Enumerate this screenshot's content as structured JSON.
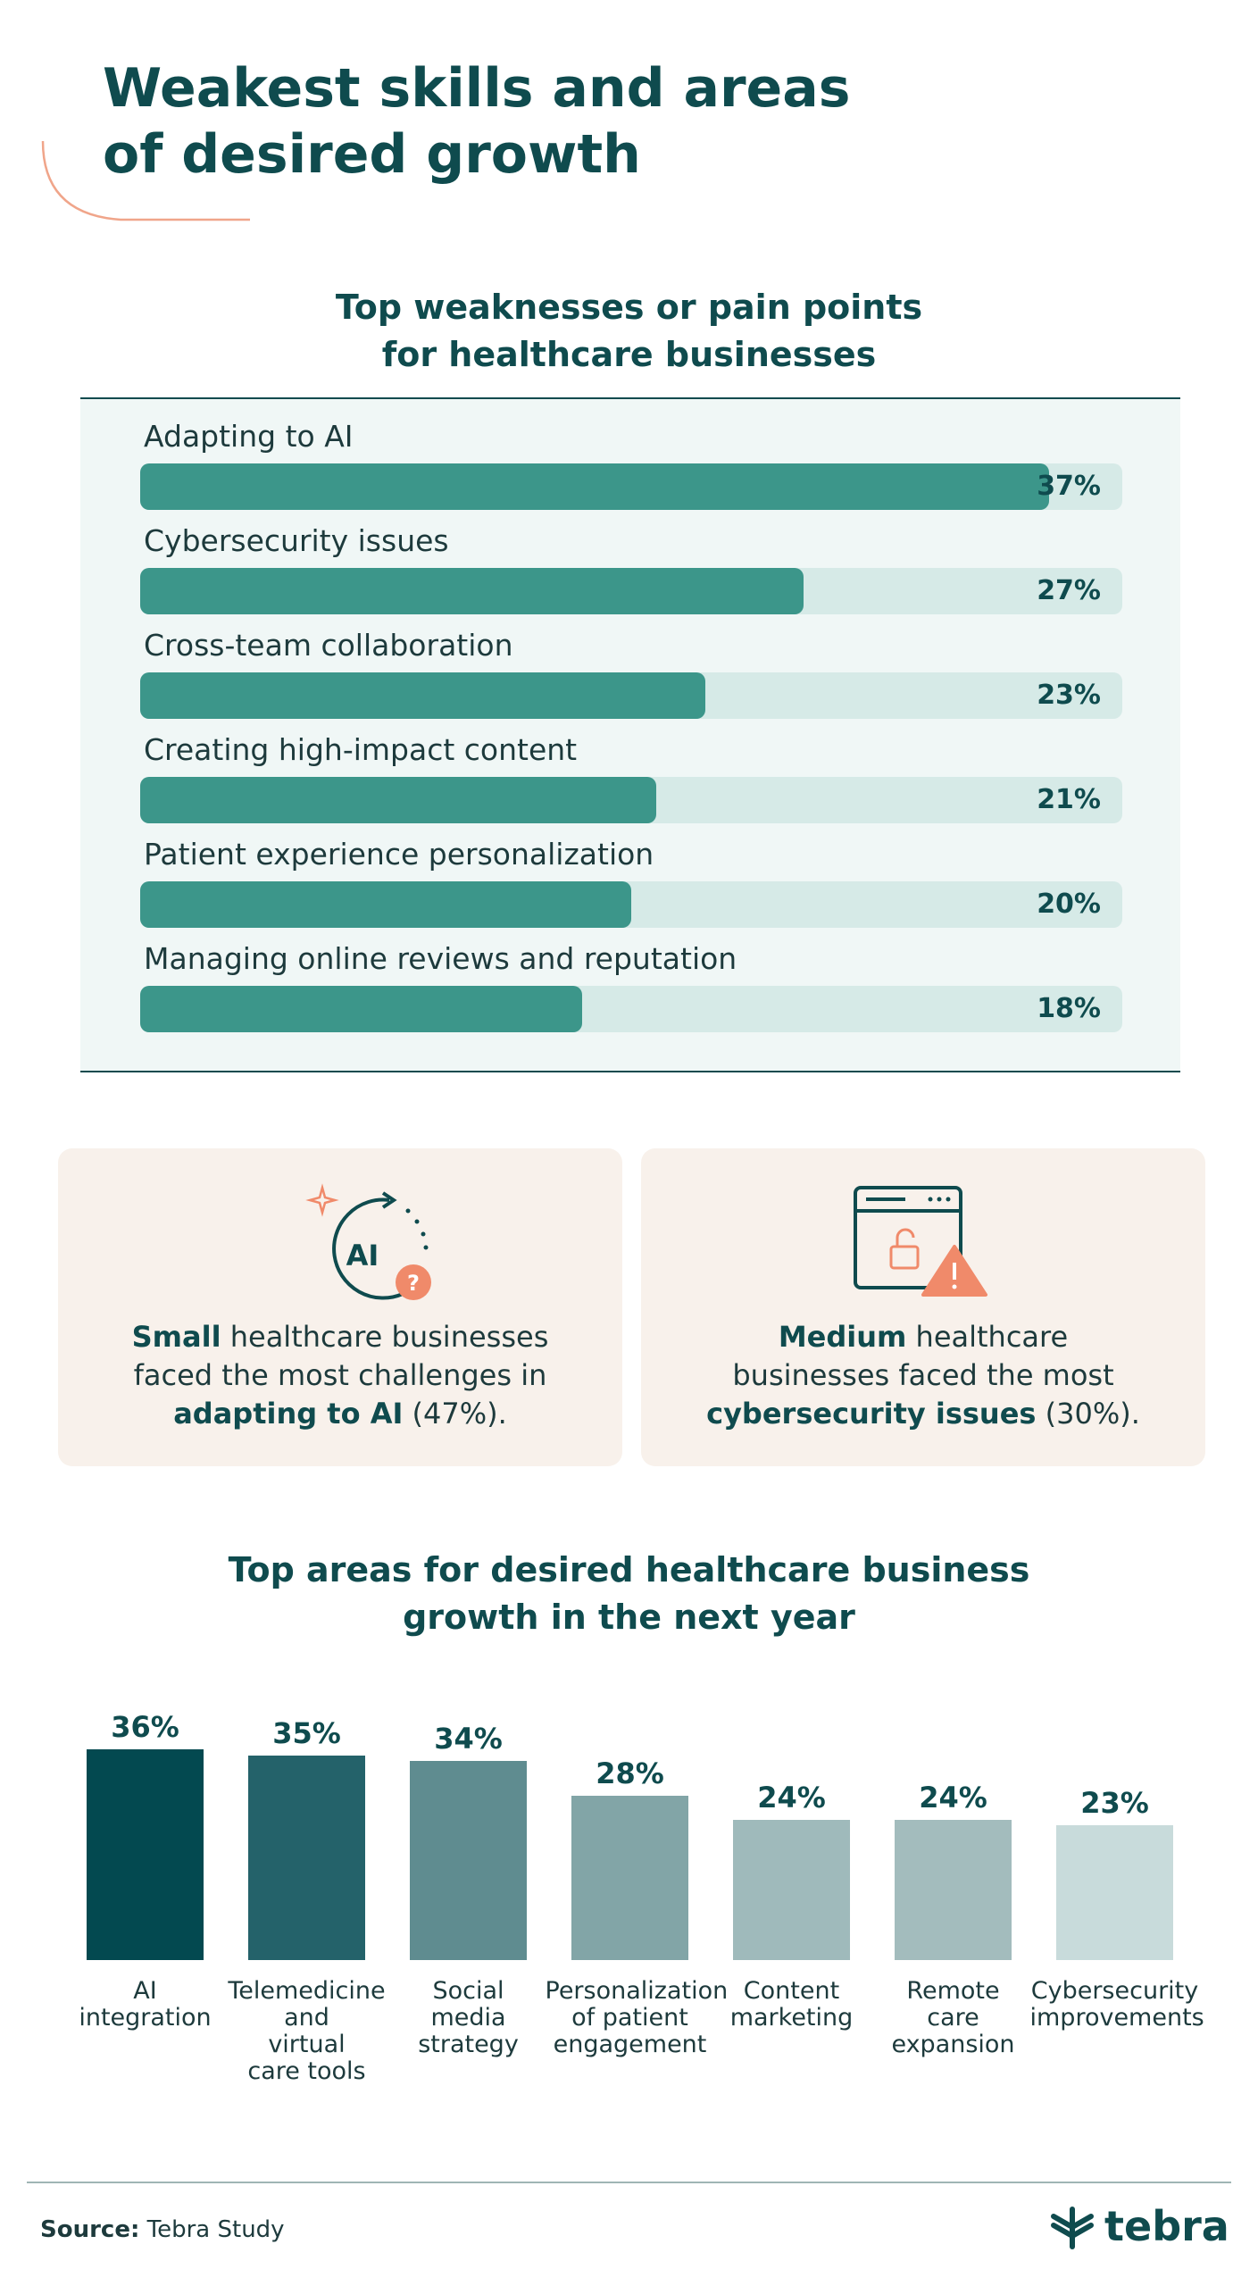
{
  "header": {
    "title_line1": "Weakest skills and areas",
    "title_line2": "of desired growth"
  },
  "weaknesses": {
    "title_line1": "Top weaknesses or pain points",
    "title_line2": "for healthcare businesses"
  },
  "cards": [
    {
      "icon": "ai-question-icon",
      "bold1": "Small",
      "text1": " healthcare businesses",
      "text2": "faced the most challenges in",
      "bold2": "adapting to AI",
      "text3": " (47%).",
      "icon_text": "AI"
    },
    {
      "icon": "browser-unlock-warning-icon",
      "bold1": "Medium",
      "text1": " healthcare",
      "text2": "businesses faced the most",
      "bold2": "cybersecurity issues",
      "text3": " (30%)."
    }
  ],
  "growth": {
    "title_line1": "Top areas for desired healthcare business",
    "title_line2": "growth in the next year"
  },
  "footer": {
    "source_label": "Source:",
    "source_value": " Tebra Study",
    "brand": "tebra"
  },
  "colors": {
    "dark_teal": "#0f4b4e",
    "bar_teal": "#3c968a",
    "track": "#d6eae7",
    "accent_orange": "#f08a6a",
    "card_bg": "#f8f1eb"
  },
  "chart_data": [
    {
      "type": "bar",
      "orientation": "horizontal",
      "title": "Top weaknesses or pain points for healthcare businesses",
      "categories": [
        "Adapting to AI",
        "Cybersecurity issues",
        "Cross-team collaboration",
        "Creating high-impact content",
        "Patient experience personalization",
        "Managing online reviews and reputation"
      ],
      "values": [
        37,
        27,
        23,
        21,
        20,
        18
      ],
      "labels": [
        "37%",
        "27%",
        "23%",
        "21%",
        "20%",
        "18%"
      ],
      "xlim": [
        0,
        40
      ],
      "unit": "%"
    },
    {
      "type": "bar",
      "orientation": "vertical",
      "title": "Top areas for desired healthcare business growth in the next year",
      "categories": [
        [
          "AI",
          "integration"
        ],
        [
          "Telemedicine",
          "and",
          "virtual",
          "care tools"
        ],
        [
          "Social",
          "media",
          "strategy"
        ],
        [
          "Personalization",
          "of patient",
          "engagement"
        ],
        [
          "Content",
          "marketing"
        ],
        [
          "Remote",
          "care",
          "expansion"
        ],
        [
          "Cybersecurity",
          "improvements"
        ]
      ],
      "values": [
        36,
        35,
        34,
        28,
        24,
        24,
        23
      ],
      "labels": [
        "36%",
        "35%",
        "34%",
        "28%",
        "24%",
        "24%",
        "23%"
      ],
      "colors": [
        "#034950",
        "#24626a",
        "#5f8c90",
        "#82a5a7",
        "#9fbabb",
        "#a3bcbd",
        "#c8dbdb"
      ],
      "unit": "%"
    }
  ]
}
